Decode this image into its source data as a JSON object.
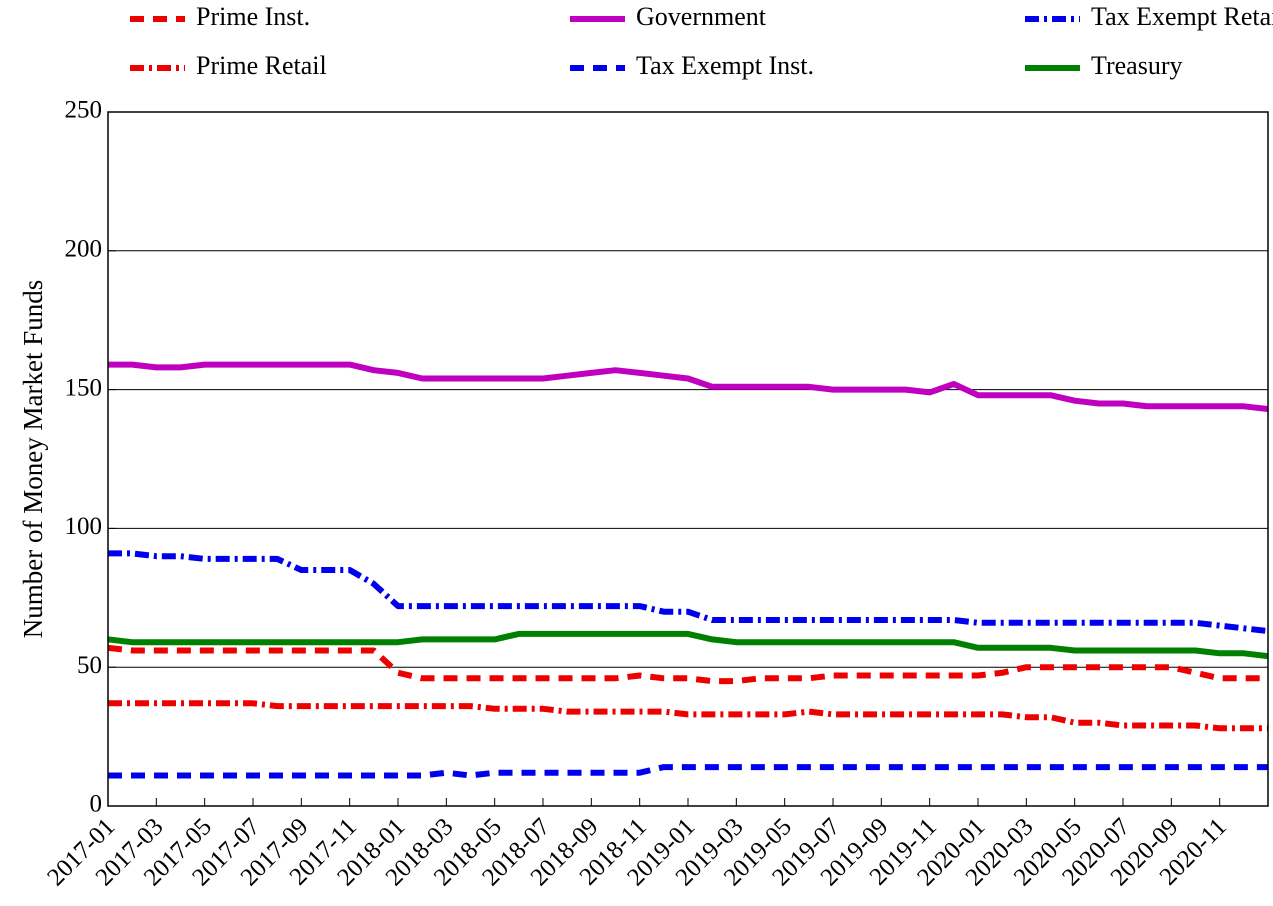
{
  "chart_data": {
    "type": "line",
    "y_label": "Number of Money Market Funds",
    "x": [
      "2017-01",
      "2017-02",
      "2017-03",
      "2017-04",
      "2017-05",
      "2017-06",
      "2017-07",
      "2017-08",
      "2017-09",
      "2017-10",
      "2017-11",
      "2017-12",
      "2018-01",
      "2018-02",
      "2018-03",
      "2018-04",
      "2018-05",
      "2018-06",
      "2018-07",
      "2018-08",
      "2018-09",
      "2018-10",
      "2018-11",
      "2018-12",
      "2019-01",
      "2019-02",
      "2019-03",
      "2019-04",
      "2019-05",
      "2019-06",
      "2019-07",
      "2019-08",
      "2019-09",
      "2019-10",
      "2019-11",
      "2019-12",
      "2020-01",
      "2020-02",
      "2020-03",
      "2020-04",
      "2020-05",
      "2020-06",
      "2020-07",
      "2020-08",
      "2020-09",
      "2020-10",
      "2020-11",
      "2020-12",
      "2021-01"
    ],
    "xticks": [
      "2017-01",
      "2017-03",
      "2017-05",
      "2017-07",
      "2017-09",
      "2017-11",
      "2018-01",
      "2018-03",
      "2018-05",
      "2018-07",
      "2018-09",
      "2018-11",
      "2019-01",
      "2019-03",
      "2019-05",
      "2019-07",
      "2019-09",
      "2019-11",
      "2020-01",
      "2020-03",
      "2020-05",
      "2020-07",
      "2020-09",
      "2020-11"
    ],
    "ylim": [
      0,
      250
    ],
    "yticks": [
      0,
      50,
      100,
      150,
      200,
      250
    ],
    "grid": true,
    "series": [
      {
        "name": "Prime Inst.",
        "color": "#ee0000",
        "style": "dashed",
        "values": [
          57,
          56,
          56,
          56,
          56,
          56,
          56,
          56,
          56,
          56,
          56,
          56,
          48,
          46,
          46,
          46,
          46,
          46,
          46,
          46,
          46,
          46,
          47,
          46,
          46,
          45,
          45,
          46,
          46,
          46,
          47,
          47,
          47,
          47,
          47,
          47,
          47,
          48,
          50,
          50,
          50,
          50,
          50,
          50,
          50,
          48,
          46,
          46,
          46
        ]
      },
      {
        "name": "Prime Retail",
        "color": "#ee0000",
        "style": "dashdot",
        "values": [
          37,
          37,
          37,
          37,
          37,
          37,
          37,
          36,
          36,
          36,
          36,
          36,
          36,
          36,
          36,
          36,
          35,
          35,
          35,
          34,
          34,
          34,
          34,
          34,
          33,
          33,
          33,
          33,
          33,
          34,
          33,
          33,
          33,
          33,
          33,
          33,
          33,
          33,
          32,
          32,
          30,
          30,
          29,
          29,
          29,
          29,
          28,
          28,
          28
        ]
      },
      {
        "name": "Government",
        "color": "#bf00bf",
        "style": "solid",
        "values": [
          159,
          159,
          158,
          158,
          159,
          159,
          159,
          159,
          159,
          159,
          159,
          157,
          156,
          154,
          154,
          154,
          154,
          154,
          154,
          155,
          156,
          157,
          156,
          155,
          154,
          151,
          151,
          151,
          151,
          151,
          150,
          150,
          150,
          150,
          149,
          152,
          148,
          148,
          148,
          148,
          146,
          145,
          145,
          144,
          144,
          144,
          144,
          144,
          143
        ]
      },
      {
        "name": "Tax Exempt Inst.",
        "color": "#0000ee",
        "style": "dashed",
        "values": [
          11,
          11,
          11,
          11,
          11,
          11,
          11,
          11,
          11,
          11,
          11,
          11,
          11,
          11,
          12,
          11,
          12,
          12,
          12,
          12,
          12,
          12,
          12,
          14,
          14,
          14,
          14,
          14,
          14,
          14,
          14,
          14,
          14,
          14,
          14,
          14,
          14,
          14,
          14,
          14,
          14,
          14,
          14,
          14,
          14,
          14,
          14,
          14,
          14
        ]
      },
      {
        "name": "Tax Exempt Retail",
        "color": "#0000ee",
        "style": "dashdot",
        "values": [
          91,
          91,
          90,
          90,
          89,
          89,
          89,
          89,
          85,
          85,
          85,
          80,
          72,
          72,
          72,
          72,
          72,
          72,
          72,
          72,
          72,
          72,
          72,
          70,
          70,
          67,
          67,
          67,
          67,
          67,
          67,
          67,
          67,
          67,
          67,
          67,
          66,
          66,
          66,
          66,
          66,
          66,
          66,
          66,
          66,
          66,
          65,
          64,
          63
        ]
      },
      {
        "name": "Treasury",
        "color": "#008000",
        "style": "solid",
        "values": [
          60,
          59,
          59,
          59,
          59,
          59,
          59,
          59,
          59,
          59,
          59,
          59,
          59,
          60,
          60,
          60,
          60,
          62,
          62,
          62,
          62,
          62,
          62,
          62,
          62,
          60,
          59,
          59,
          59,
          59,
          59,
          59,
          59,
          59,
          59,
          59,
          57,
          57,
          57,
          57,
          56,
          56,
          56,
          56,
          56,
          56,
          55,
          55,
          54
        ]
      }
    ]
  }
}
